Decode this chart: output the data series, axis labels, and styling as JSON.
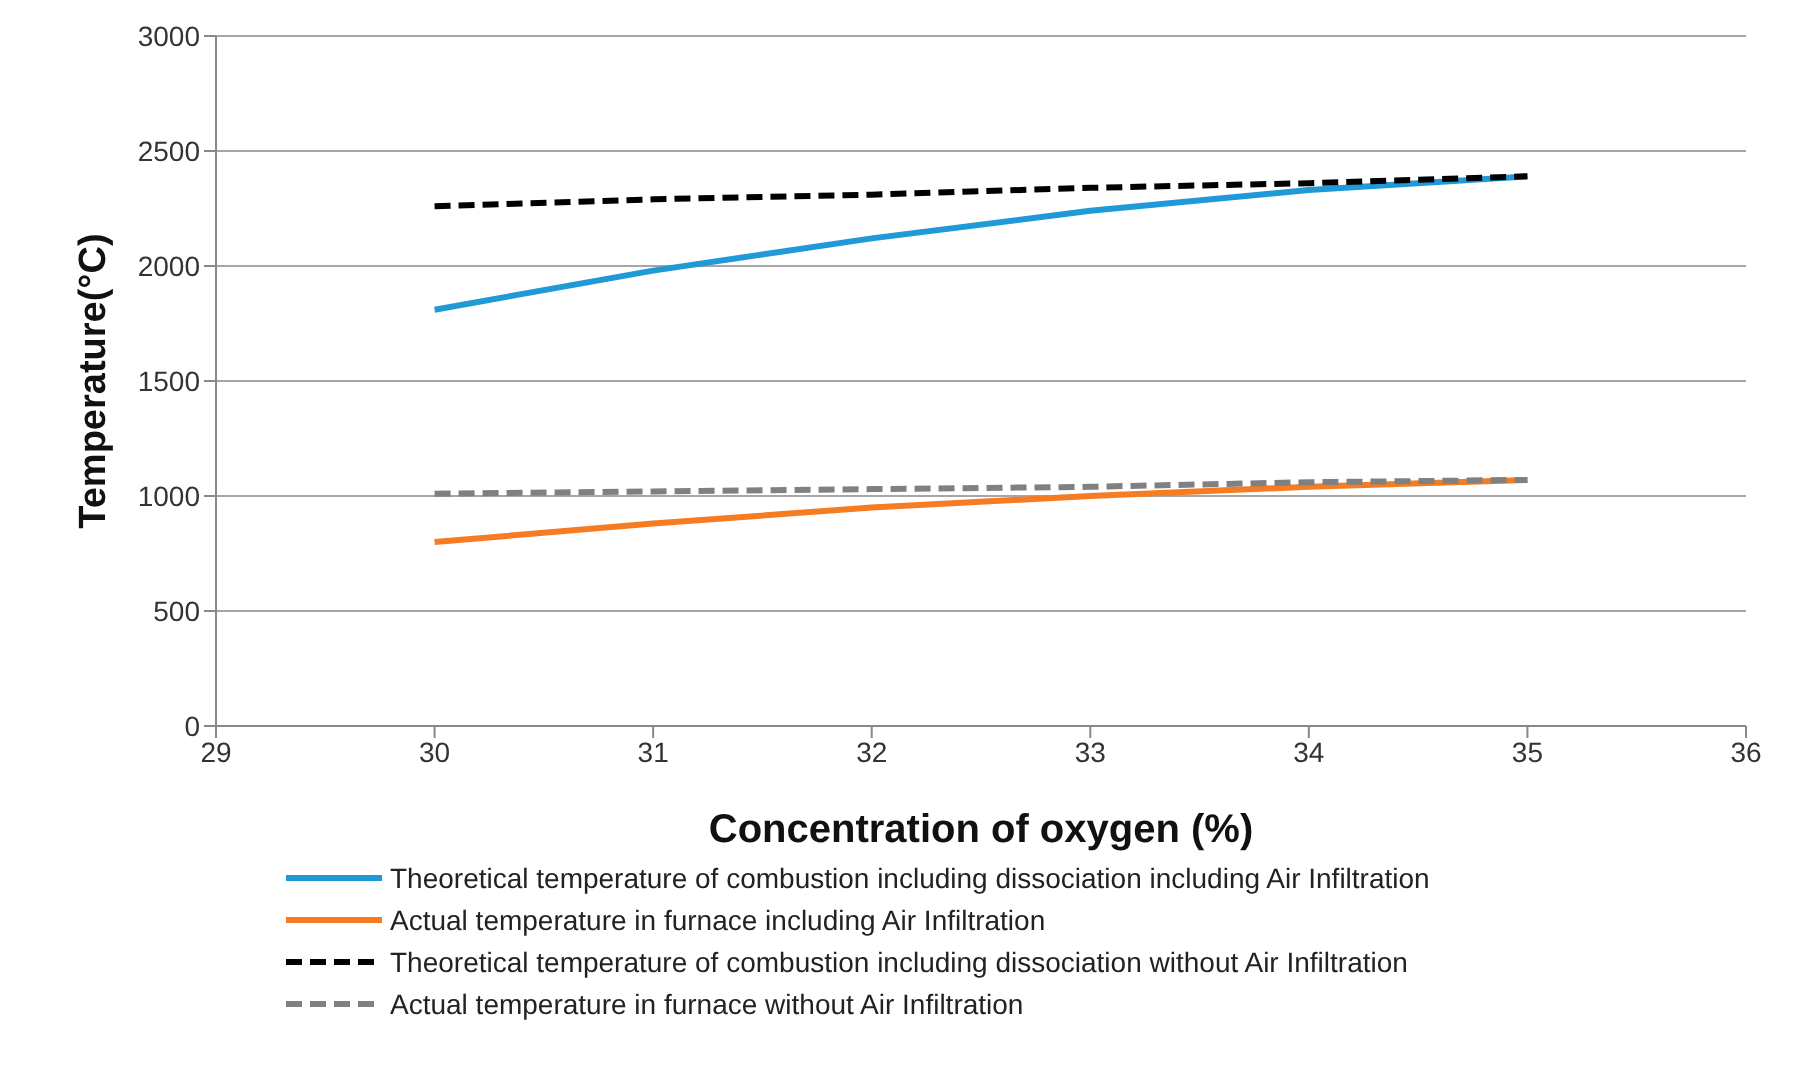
{
  "chart_data": {
    "type": "line",
    "xlabel": "Concentration of  oxygen  (%)",
    "ylabel": "Temperature(°C)",
    "x": [
      30,
      31,
      32,
      33,
      34,
      35
    ],
    "xlim": [
      29,
      36
    ],
    "xticks": [
      29,
      30,
      31,
      32,
      33,
      34,
      35,
      36
    ],
    "ylim": [
      0,
      3000
    ],
    "yticks": [
      0,
      500,
      1000,
      1500,
      2000,
      2500,
      3000
    ],
    "grid": "y",
    "legend": "bottom",
    "marker": "none",
    "series": [
      {
        "name": "Theoretical temperature of combustion including dissociation including Air Infiltration",
        "color": "#1f9ad6",
        "line_style": "solid",
        "values": [
          1810,
          1980,
          2120,
          2240,
          2330,
          2390
        ]
      },
      {
        "name": "Actual temperature in furnace including Air Infiltration",
        "color": "#f57c20",
        "line_style": "solid",
        "values": [
          800,
          880,
          950,
          1000,
          1040,
          1070
        ]
      },
      {
        "name": "Theoretical temperature of combustion including dissociation without Air Infiltration",
        "color": "#000000",
        "line_style": "dashed",
        "values": [
          2260,
          2290,
          2310,
          2340,
          2360,
          2390
        ]
      },
      {
        "name": "Actual temperature in furnace without Air Infiltration",
        "color": "#808080",
        "line_style": "dashed",
        "values": [
          1010,
          1020,
          1030,
          1040,
          1060,
          1070
        ]
      }
    ]
  }
}
